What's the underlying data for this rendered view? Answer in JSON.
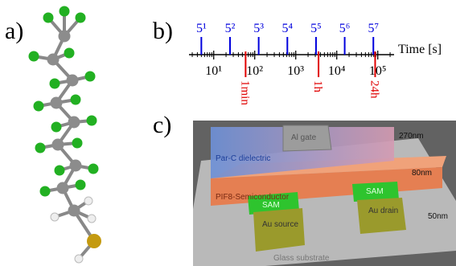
{
  "panel_labels": [
    "a)",
    "b)",
    "c)"
  ],
  "chart_data": {
    "type": "timeline",
    "xlabel": "Time [s]",
    "log_x": true,
    "xlim": [
      2.5,
      250000
    ],
    "xticks": [
      {
        "value": 10,
        "label": "10¹"
      },
      {
        "value": 100,
        "label": "10²"
      },
      {
        "value": 1000,
        "label": "10³"
      },
      {
        "value": 10000,
        "label": "10⁴"
      },
      {
        "value": 100000,
        "label": "10⁵"
      }
    ],
    "xminorticks": [
      3,
      4,
      5,
      6,
      7,
      8,
      9,
      20,
      30,
      40,
      50,
      60,
      70,
      80,
      90,
      200,
      300,
      400,
      500,
      600,
      700,
      800,
      900,
      2000,
      3000,
      4000,
      5000,
      6000,
      7000,
      8000,
      9000,
      20000,
      30000,
      40000,
      50000,
      60000,
      70000,
      80000,
      90000,
      200000
    ],
    "markers_top": {
      "color": "#0000dd",
      "values": [
        5,
        25,
        125,
        625,
        3125,
        15625,
        78125
      ],
      "value_labels": [
        "5¹",
        "5²",
        "5³",
        "5⁴",
        "5⁵",
        "5⁶",
        "5⁷"
      ]
    },
    "markers_bottom": {
      "color": "#e00000",
      "values": [
        60,
        3600,
        86400
      ],
      "value_labels": [
        "1min",
        "1h",
        "24h"
      ]
    }
  },
  "device_labels": {
    "dielectric": "Par-C dielectric",
    "gate": "Al gate",
    "dielectric_thickness": "270nm",
    "semiconductor": "PIF8-Semiconductor",
    "semiconductor_thickness": "80nm",
    "sam_left": "SAM",
    "source": "Au source",
    "sam_right": "SAM",
    "drain": "Au drain",
    "electrode_thickness": "50nm",
    "substrate": "Glass substrate"
  }
}
